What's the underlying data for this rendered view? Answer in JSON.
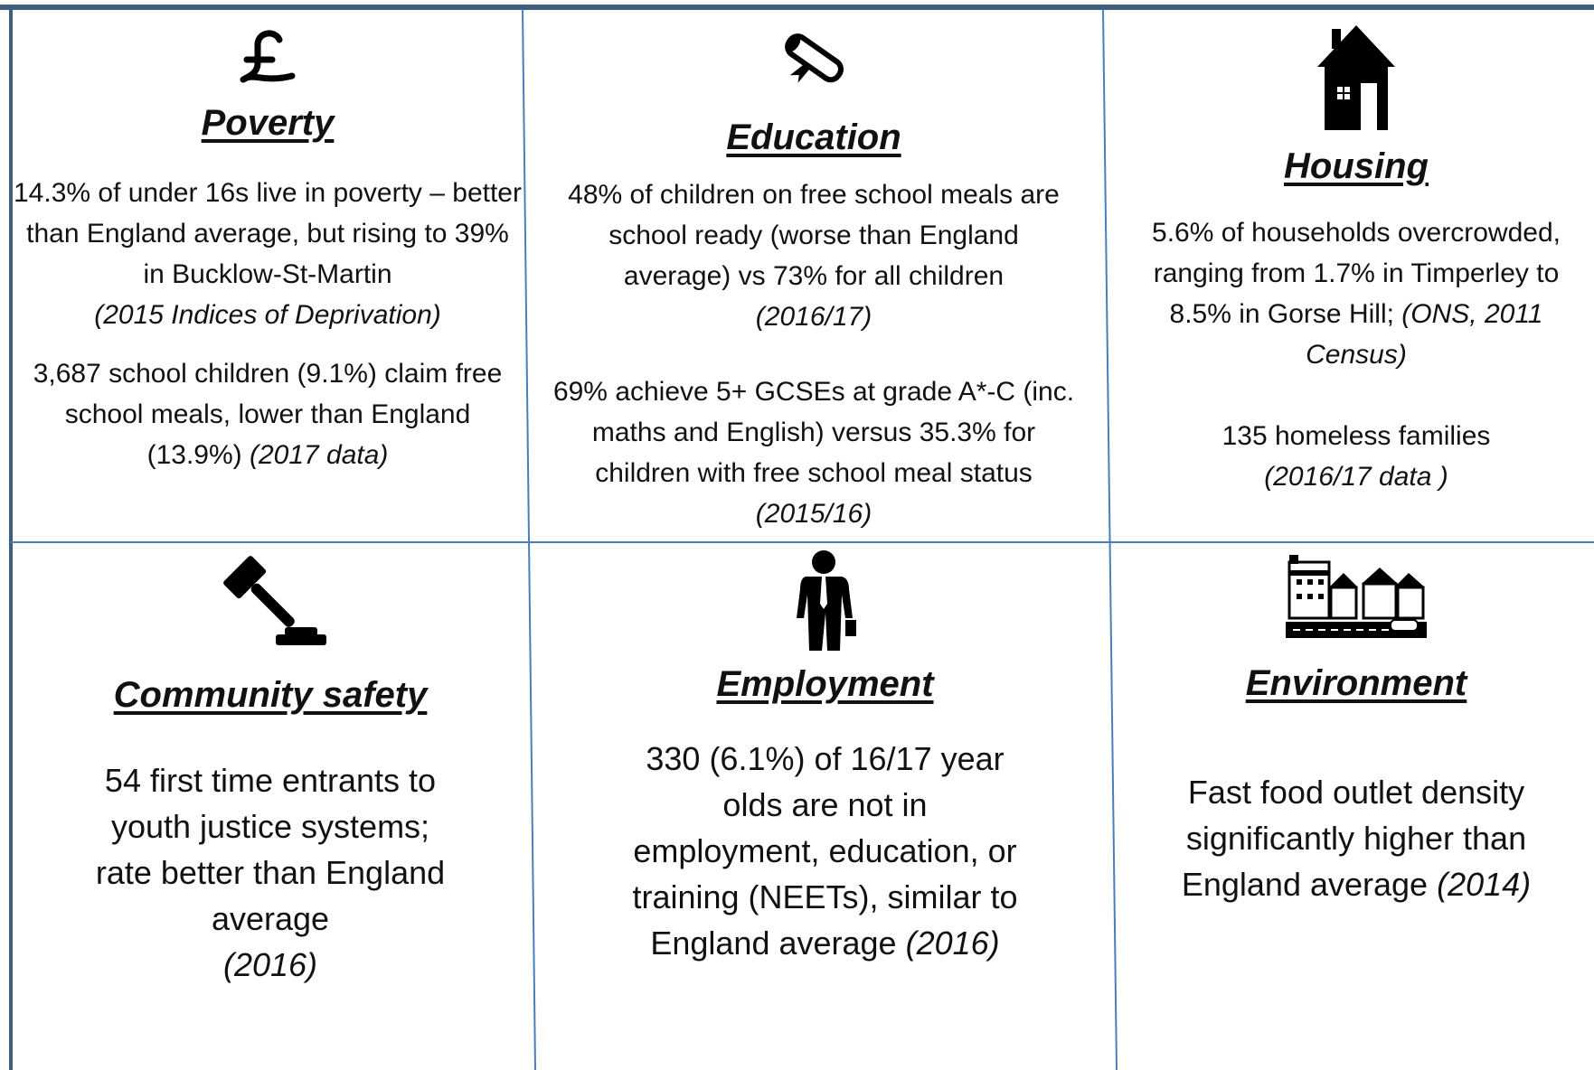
{
  "cells": [
    {
      "title": "Poverty",
      "paragraphs": [
        {
          "text": "14.3% of under 16s live in poverty – better than England average, but rising to 39% in Bucklow-St-Martin",
          "source": "(2015 Indices of Deprivation)"
        },
        {
          "text": "3,687 school children (9.1%) claim free school meals, lower than England (13.9%)",
          "source": "(2017 data)"
        }
      ]
    },
    {
      "title": "Education",
      "paragraphs": [
        {
          "text": "48% of children on free school meals are school ready (worse than England average) vs 73% for all children",
          "source": "(2016/17)"
        },
        {
          "text": "69% achieve 5+ GCSEs at grade A*-C (inc. maths and English) versus 35.3% for children with free school meal status",
          "source": "(2015/16)"
        }
      ]
    },
    {
      "title": "Housing",
      "paragraphs": [
        {
          "text": "5.6% of households overcrowded, ranging from 1.7% in Timperley to 8.5% in Gorse Hill;",
          "source": "(ONS, 2011 Census)"
        },
        {
          "text": "135 homeless families",
          "source": "(2016/17 data )"
        }
      ]
    },
    {
      "title": "Community safety",
      "paragraphs": [
        {
          "text": "54 first time entrants to youth justice systems; rate better than England average",
          "source": "(2016)"
        }
      ]
    },
    {
      "title": "Employment",
      "paragraphs": [
        {
          "text": "330 (6.1%) of 16/17 year olds are not in employment, education, or training (NEETs), similar to England average",
          "source": "(2016)"
        }
      ]
    },
    {
      "title": "Environment",
      "paragraphs": [
        {
          "text": "Fast food outlet density significantly higher than England average",
          "source": "(2014)"
        }
      ]
    }
  ]
}
